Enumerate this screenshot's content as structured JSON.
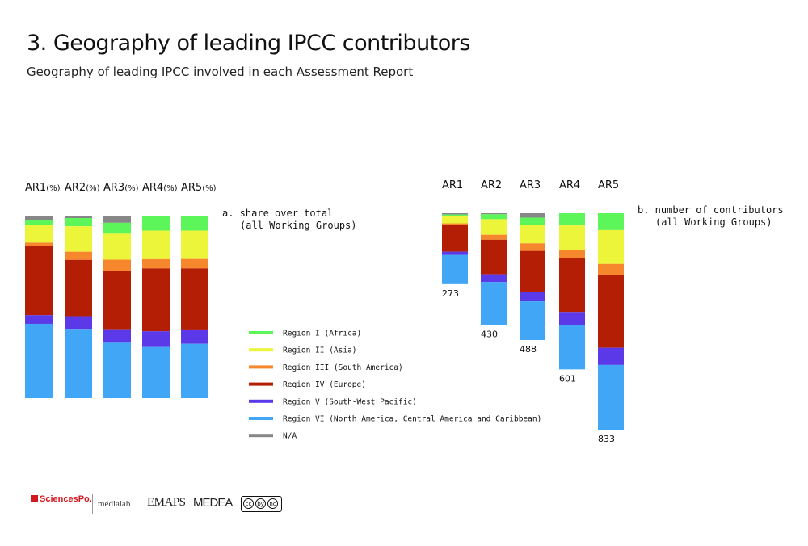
{
  "header": {
    "title": "3. Geography of leading IPCC contributors",
    "subtitle": "Geography of leading IPCC involved in each Assessment Report"
  },
  "legend": {
    "items": [
      {
        "label": "Region I (Africa)",
        "color": "#5cf55a"
      },
      {
        "label": "Region II (Asia)",
        "color": "#ecf53a"
      },
      {
        "label": "Region III (South America)",
        "color": "#f7872d"
      },
      {
        "label": "Region IV (Europe)",
        "color": "#b31e05"
      },
      {
        "label": "Region V (South-West Pacific)",
        "color": "#5b39e8"
      },
      {
        "label": "Region VI (North America, Central America and Caribbean)",
        "color": "#41a6f5"
      },
      {
        "label": "N/A",
        "color": "#878787"
      }
    ]
  },
  "chart_data": [
    {
      "type": "bar",
      "stacked": true,
      "normalized": true,
      "title": "a. share over total",
      "subtitle": "(all Working Groups)",
      "categories": [
        "AR1",
        "AR2",
        "AR3",
        "AR4",
        "AR5"
      ],
      "category_labels": [
        "AR1",
        "AR2",
        "AR3",
        "AR4",
        "AR5"
      ],
      "unit_suffix": "(%)",
      "series": [
        {
          "name": "N/A",
          "values": [
            1.8,
            0.9,
            3.5,
            0,
            0
          ]
        },
        {
          "name": "Region I (Africa)",
          "values": [
            2.7,
            4.5,
            6.0,
            7.8,
            7.8
          ]
        },
        {
          "name": "Region II (Asia)",
          "values": [
            9.9,
            14.0,
            14.3,
            15.7,
            15.6
          ]
        },
        {
          "name": "Region III (South America)",
          "values": [
            1.8,
            4.5,
            6.0,
            5.1,
            5.2
          ]
        },
        {
          "name": "Region IV (Europe)",
          "values": [
            38.1,
            31.0,
            32.3,
            34.6,
            33.6
          ]
        },
        {
          "name": "Region V (South-West Pacific)",
          "values": [
            4.8,
            7.0,
            7.4,
            8.7,
            7.9
          ]
        },
        {
          "name": "Region VI (North America, Central America and Caribbean)",
          "values": [
            40.9,
            38.1,
            30.5,
            28.1,
            29.9
          ]
        }
      ],
      "ylim": [
        0,
        100
      ]
    },
    {
      "type": "bar",
      "stacked": true,
      "title": "b. number of contributors",
      "subtitle": "(all Working Groups)",
      "categories": [
        "AR1",
        "AR2",
        "AR3",
        "AR4",
        "AR5"
      ],
      "totals": [
        273,
        430,
        488,
        601,
        833
      ],
      "series": [
        {
          "name": "N/A",
          "values": [
            5,
            4,
            17,
            0,
            0
          ]
        },
        {
          "name": "Region I (Africa)",
          "values": [
            7,
            19,
            29,
            47,
            65
          ]
        },
        {
          "name": "Region II (Asia)",
          "values": [
            27,
            60,
            70,
            94,
            130
          ]
        },
        {
          "name": "Region III (South America)",
          "values": [
            5,
            19,
            29,
            31,
            43
          ]
        },
        {
          "name": "Region IV (Europe)",
          "values": [
            104,
            133,
            158,
            208,
            280
          ]
        },
        {
          "name": "Region V (South-West Pacific)",
          "values": [
            13,
            30,
            36,
            52,
            66
          ]
        },
        {
          "name": "Region VI (North America, Central America and Caribbean)",
          "values": [
            112,
            165,
            149,
            169,
            249
          ]
        }
      ]
    }
  ],
  "footer": {
    "logos": [
      {
        "label": "SciencesPo."
      },
      {
        "label": "médialab"
      },
      {
        "label": "EMAPS"
      },
      {
        "label": "MEDEA"
      },
      {
        "label": "cc by nc nd",
        "parts": [
          "cc",
          "by",
          "nc",
          "nd"
        ]
      }
    ]
  }
}
